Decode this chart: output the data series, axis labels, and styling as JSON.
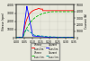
{
  "xlabel": "Temps (s)",
  "ylabel_left": "Vitesse (rpm)",
  "ylabel_right": "Courant (A)",
  "xlim": [
    0,
    0.35
  ],
  "ylim_left": [
    0,
    4000
  ],
  "ylim_right": [
    0,
    5000
  ],
  "yticks_left": [
    0,
    1000,
    2000,
    3000,
    4000
  ],
  "yticks_right": [
    0,
    1000,
    2000,
    3000,
    4000,
    5000
  ],
  "xticks": [
    0,
    0.05,
    0.1,
    0.15,
    0.2,
    0.25,
    0.3,
    0.35
  ],
  "background_color": "#e8e8dc",
  "plot_bg": "#e8e8dc",
  "legend_colors": [
    "#ff0000",
    "#00bb00",
    "#0000ff",
    "#009999"
  ],
  "legend_styles": [
    "-",
    "-",
    "-",
    "-"
  ],
  "legend_labels": [
    "Vitesse",
    "Vitesse",
    "Courant",
    "Courant"
  ],
  "legend_sublabels": [
    "sans lim.",
    "avec lim.",
    "sans lim.",
    "avec lim."
  ]
}
